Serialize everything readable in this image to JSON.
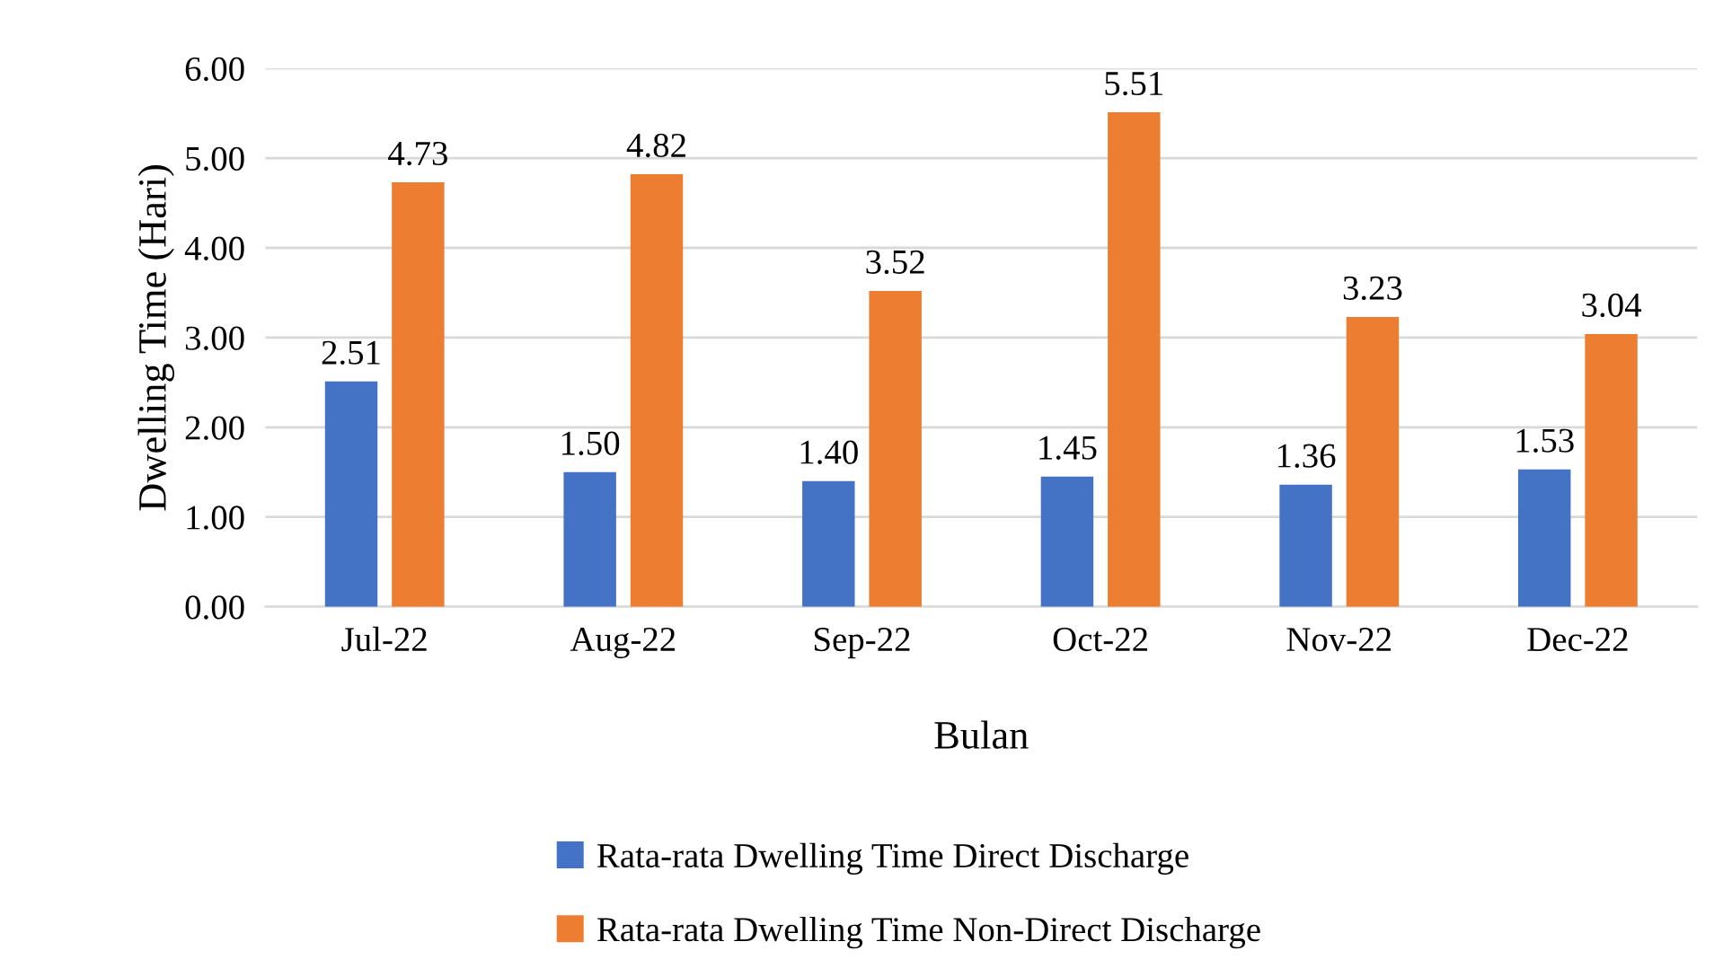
{
  "chart_data": {
    "type": "bar",
    "xlabel": "Bulan",
    "ylabel": "Dwelling Time (Hari)",
    "categories": [
      "Jul-22",
      "Aug-22",
      "Sep-22",
      "Oct-22",
      "Nov-22",
      "Dec-22"
    ],
    "series": [
      {
        "name": "Rata-rata Dwelling Time Direct Discharge",
        "color": "#4472c4",
        "values": [
          2.51,
          1.5,
          1.4,
          1.45,
          1.36,
          1.53
        ],
        "value_labels": [
          "2.51",
          "1.50",
          "1.40",
          "1.45",
          "1.36",
          "1.53"
        ]
      },
      {
        "name": "Rata-rata Dwelling Time Non-Direct Discharge",
        "color": "#ed7d31",
        "values": [
          4.73,
          4.82,
          3.52,
          5.51,
          3.23,
          3.04
        ],
        "value_labels": [
          "4.73",
          "4.82",
          "3.52",
          "5.51",
          "3.23",
          "3.04"
        ]
      }
    ],
    "ylim": [
      0,
      6
    ],
    "yticks": [
      {
        "value": 0,
        "label": "0.00"
      },
      {
        "value": 1,
        "label": "1.00"
      },
      {
        "value": 2,
        "label": "2.00"
      },
      {
        "value": 3,
        "label": "3.00"
      },
      {
        "value": 4,
        "label": "4.00"
      },
      {
        "value": 5,
        "label": "5.00"
      },
      {
        "value": 6,
        "label": "6.00"
      }
    ],
    "grid": "y",
    "legend": "bottom"
  }
}
